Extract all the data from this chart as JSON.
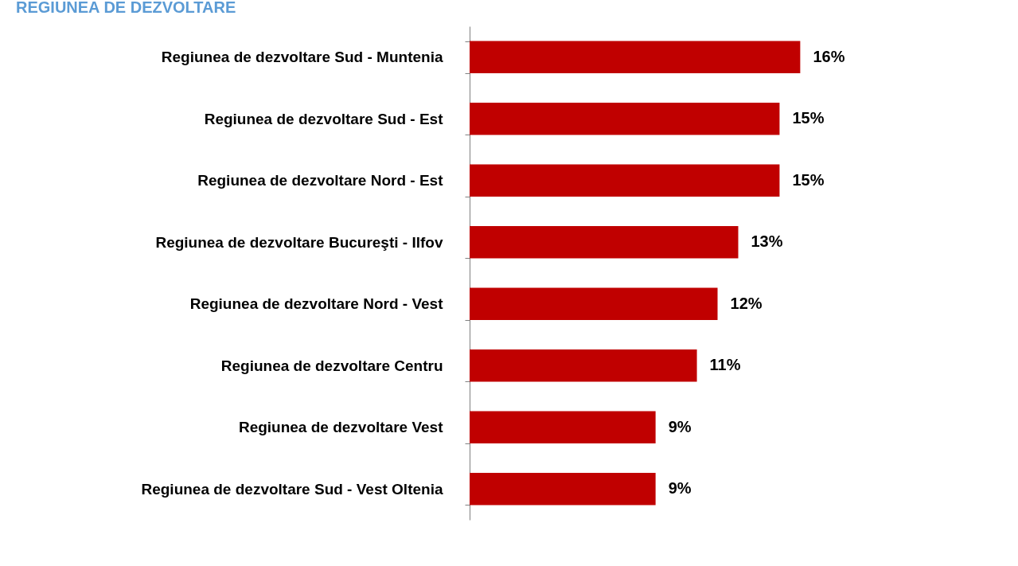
{
  "chart_data": {
    "type": "bar",
    "orientation": "horizontal",
    "title": "REGIUNEA DE DEZVOLTARE",
    "categories": [
      "Regiunea de dezvoltare Sud - Muntenia",
      "Regiunea de dezvoltare Sud - Est",
      "Regiunea de dezvoltare Nord - Est",
      "Regiunea de dezvoltare Bucureşti - Ilfov",
      "Regiunea de dezvoltare Nord - Vest",
      "Regiunea de dezvoltare Centru",
      "Regiunea de dezvoltare Vest",
      "Regiunea de dezvoltare Sud - Vest Oltenia"
    ],
    "values": [
      16,
      15,
      15,
      13,
      12,
      11,
      9,
      9
    ],
    "value_labels": [
      "16%",
      "15%",
      "15%",
      "13%",
      "12%",
      "11%",
      "9%",
      "9%"
    ],
    "color": "#c00000"
  }
}
